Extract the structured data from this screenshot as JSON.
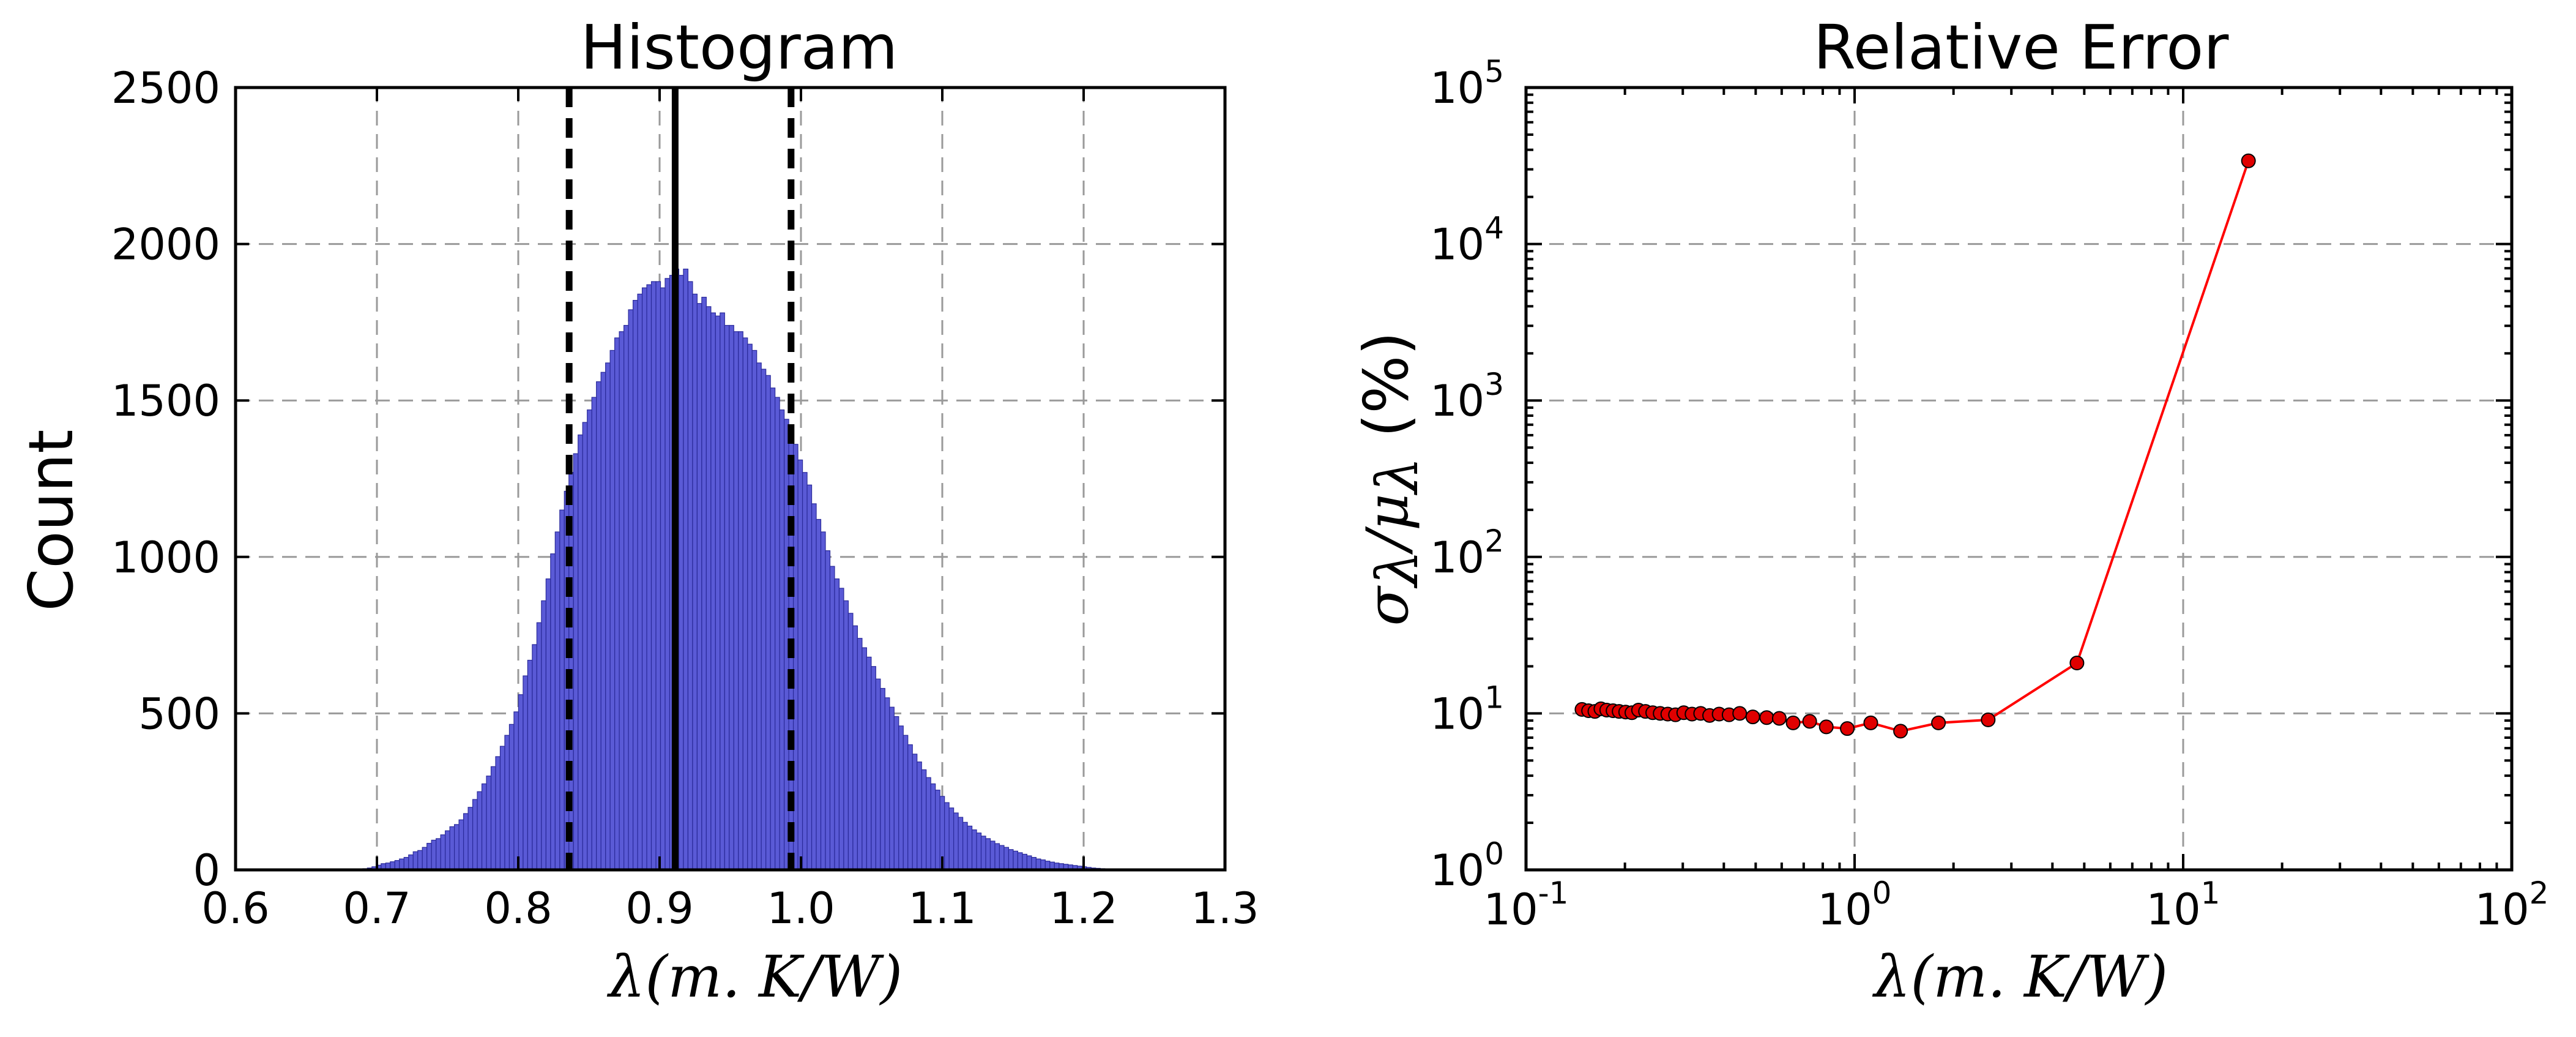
{
  "chart_data": [
    {
      "type": "bar",
      "title": "Histogram",
      "ylabel": "Count",
      "xlabel_parts": [
        "λ",
        "(m. K/W)"
      ],
      "xlim": [
        0.6,
        1.3
      ],
      "ylim": [
        0,
        2500
      ],
      "xticks": [
        "0.6",
        "0.7",
        "0.8",
        "0.9",
        "1.0",
        "1.1",
        "1.2",
        "1.3"
      ],
      "yticks": [
        "0",
        "500",
        "1000",
        "1500",
        "2000",
        "2500"
      ],
      "grid": true,
      "bar_color": "#5a5ad6",
      "bar_edge_color": "#2a2a9a",
      "bin_range": [
        0.69,
        1.215
      ],
      "counts": [
        4,
        6,
        10,
        15,
        20,
        22,
        26,
        30,
        35,
        40,
        48,
        58,
        62,
        72,
        85,
        95,
        100,
        112,
        125,
        138,
        145,
        160,
        180,
        200,
        225,
        250,
        275,
        300,
        330,
        362,
        395,
        430,
        465,
        505,
        560,
        620,
        670,
        720,
        790,
        860,
        930,
        1010,
        1080,
        1150,
        1210,
        1270,
        1330,
        1390,
        1430,
        1470,
        1510,
        1560,
        1590,
        1620,
        1660,
        1700,
        1720,
        1740,
        1790,
        1820,
        1840,
        1860,
        1870,
        1880,
        1880,
        1860,
        1890,
        1900,
        1920,
        1900,
        1920,
        1880,
        1840,
        1810,
        1830,
        1800,
        1780,
        1770,
        1780,
        1740,
        1740,
        1720,
        1720,
        1700,
        1680,
        1660,
        1620,
        1600,
        1580,
        1540,
        1510,
        1470,
        1440,
        1400,
        1360,
        1310,
        1270,
        1230,
        1170,
        1120,
        1080,
        1020,
        970,
        930,
        900,
        860,
        820,
        780,
        740,
        710,
        680,
        650,
        610,
        580,
        550,
        520,
        490,
        460,
        430,
        400,
        370,
        345,
        320,
        295,
        275,
        255,
        235,
        215,
        198,
        182,
        168,
        152,
        140,
        128,
        118,
        108,
        100,
        92,
        84,
        78,
        72,
        65,
        60,
        55,
        50,
        45,
        40,
        35,
        32,
        28,
        25,
        22,
        20,
        18,
        16,
        14,
        12,
        10,
        8,
        6,
        5,
        4
      ],
      "vlines": [
        {
          "x": 0.911,
          "style": "solid"
        },
        {
          "x": 0.836,
          "style": "dashed"
        },
        {
          "x": 0.993,
          "style": "dashed"
        }
      ]
    },
    {
      "type": "line",
      "title": "Relative Error",
      "ylabel_parts": [
        "σ",
        "λ",
        "/",
        "μ",
        "λ",
        " (%)"
      ],
      "xlabel_parts": [
        "λ",
        "(m. K/W)"
      ],
      "xscale": "log",
      "yscale": "log",
      "xlim": [
        0.1,
        100
      ],
      "ylim": [
        1,
        100000
      ],
      "xtick_bases": [
        "10",
        "10",
        "10",
        "10"
      ],
      "xtick_exps": [
        "-1",
        "0",
        "1",
        "2"
      ],
      "ytick_bases": [
        "10",
        "10",
        "10",
        "10",
        "10",
        "10"
      ],
      "ytick_exps": [
        "0",
        "1",
        "2",
        "3",
        "4",
        "5"
      ],
      "grid": true,
      "line_color": "#ff0000",
      "marker_color": "#e00000",
      "x": [
        0.148,
        0.155,
        0.162,
        0.169,
        0.176,
        0.184,
        0.192,
        0.201,
        0.21,
        0.22,
        0.231,
        0.243,
        0.256,
        0.27,
        0.285,
        0.302,
        0.32,
        0.34,
        0.362,
        0.387,
        0.415,
        0.447,
        0.49,
        0.54,
        0.59,
        0.65,
        0.73,
        0.82,
        0.95,
        1.12,
        1.38,
        1.8,
        2.55,
        4.75,
        15.8
      ],
      "y": [
        10.6,
        10.4,
        10.3,
        10.7,
        10.5,
        10.4,
        10.3,
        10.2,
        10.1,
        10.5,
        10.3,
        10.1,
        10.0,
        9.9,
        9.8,
        10.1,
        9.9,
        10.0,
        9.7,
        9.9,
        9.8,
        10.0,
        9.5,
        9.4,
        9.3,
        8.7,
        8.9,
        8.2,
        8.0,
        8.7,
        7.7,
        8.7,
        9.1,
        21,
        34000
      ]
    }
  ]
}
